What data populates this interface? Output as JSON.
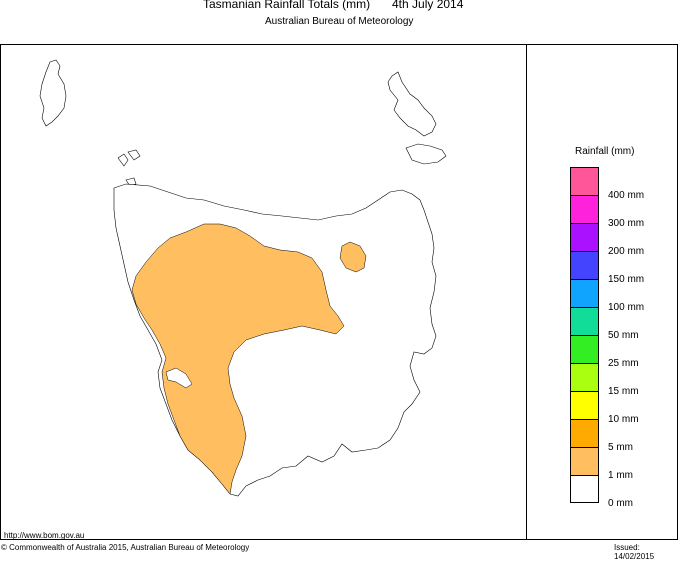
{
  "header": {
    "title": "Tasmanian Rainfall Totals (mm)",
    "date": "4th July 2014",
    "subtitle": "Australian Bureau of Meteorology"
  },
  "legend": {
    "title": "Rainfall (mm)",
    "bins": [
      {
        "label": "",
        "color": "#ff5599"
      },
      {
        "label": "400 mm",
        "color": "#ff22dd"
      },
      {
        "label": "300 mm",
        "color": "#aa11ff"
      },
      {
        "label": "200 mm",
        "color": "#4444ff"
      },
      {
        "label": "150 mm",
        "color": "#11a4ff"
      },
      {
        "label": "100 mm",
        "color": "#11dd99"
      },
      {
        "label": "50 mm",
        "color": "#33ee22"
      },
      {
        "label": "25 mm",
        "color": "#aaff11"
      },
      {
        "label": "15 mm",
        "color": "#ffff00"
      },
      {
        "label": "10 mm",
        "color": "#ffaa00"
      },
      {
        "label": "5 mm",
        "color": "#ffbf60"
      },
      {
        "label": "1 mm",
        "color": "#ffffff"
      },
      {
        "label": "0 mm",
        "color": ""
      }
    ]
  },
  "map": {
    "rain_fill_color": "#ffbf60",
    "rain_regions_depicted_bin": "1 mm"
  },
  "footer": {
    "url": "http://www.bom.gov.au",
    "copyright": "© Commonwealth of Australia 2015, Australian Bureau of Meteorology",
    "issued": "Issued: 14/02/2015"
  }
}
